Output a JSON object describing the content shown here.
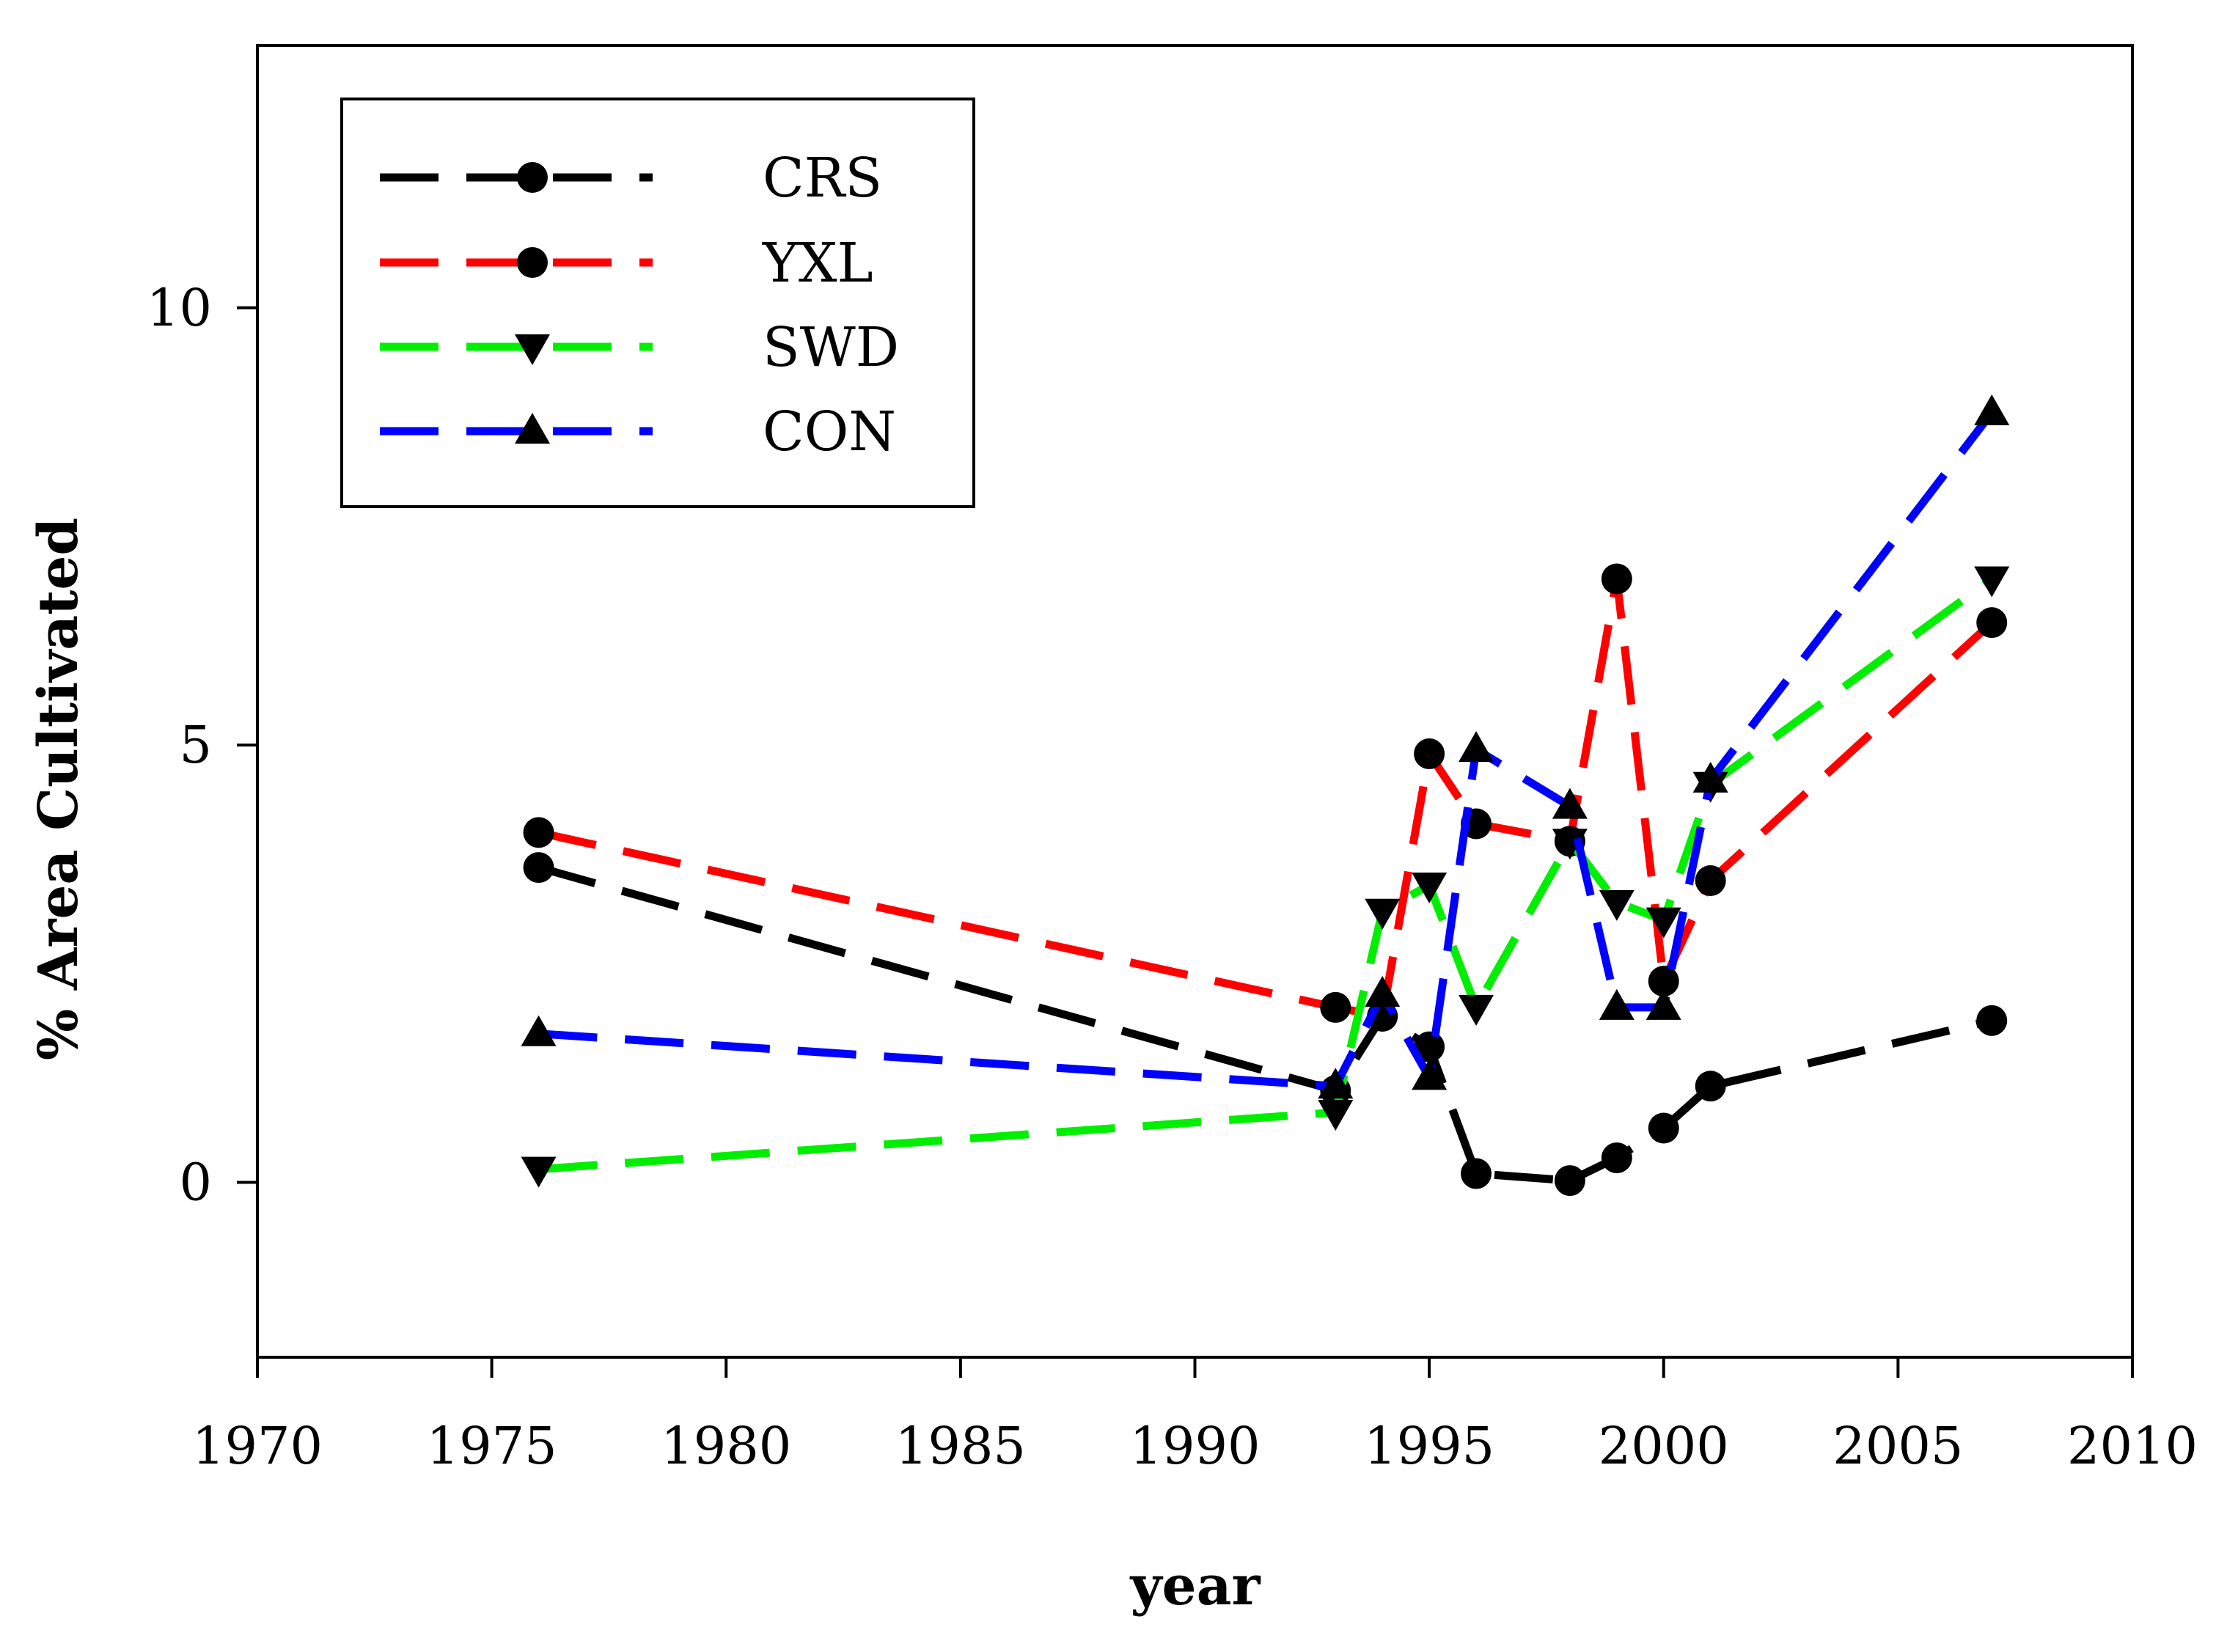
{
  "chart_data": {
    "type": "line",
    "title": "",
    "xlabel": "year",
    "ylabel": "% Area Cultivated",
    "xlim": [
      1970,
      2010
    ],
    "ylim": [
      -2,
      13
    ],
    "x_ticks": [
      1970,
      1975,
      1980,
      1985,
      1990,
      1995,
      2000,
      2005,
      2010
    ],
    "y_ticks": [
      0,
      5,
      10
    ],
    "grid": false,
    "legend_position": "top-left",
    "series": [
      {
        "name": "CRS",
        "color": "#000000",
        "marker": "circle",
        "x": [
          1976,
          1993,
          1994,
          1995,
          1996,
          1998,
          1999,
          2000,
          2001,
          2007
        ],
        "y": [
          3.6,
          1.05,
          1.9,
          1.55,
          0.1,
          0.02,
          0.28,
          0.62,
          1.1,
          1.85
        ]
      },
      {
        "name": "YXL",
        "color": "#ff0000",
        "marker": "circle",
        "x": [
          1976,
          1993,
          1994,
          1995,
          1996,
          1998,
          1999,
          2000,
          2001,
          2007
        ],
        "y": [
          4.0,
          2.0,
          1.9,
          4.9,
          4.1,
          3.9,
          6.9,
          2.3,
          3.45,
          6.4
        ]
      },
      {
        "name": "SWD",
        "color": "#00ee00",
        "marker": "triangle-down",
        "x": [
          1976,
          1993,
          1994,
          1995,
          1996,
          1998,
          1999,
          2000,
          2001,
          2007
        ],
        "y": [
          0.15,
          0.8,
          3.1,
          3.4,
          2.0,
          3.9,
          3.2,
          3.0,
          4.55,
          6.9
        ]
      },
      {
        "name": "CON",
        "color": "#0000ff",
        "marker": "triangle-up",
        "x": [
          1976,
          1993,
          1994,
          1995,
          1996,
          1998,
          1999,
          2000,
          2001,
          2007
        ],
        "y": [
          1.7,
          1.1,
          2.15,
          1.2,
          4.95,
          4.3,
          2.0,
          2.0,
          4.6,
          8.8
        ]
      }
    ]
  }
}
